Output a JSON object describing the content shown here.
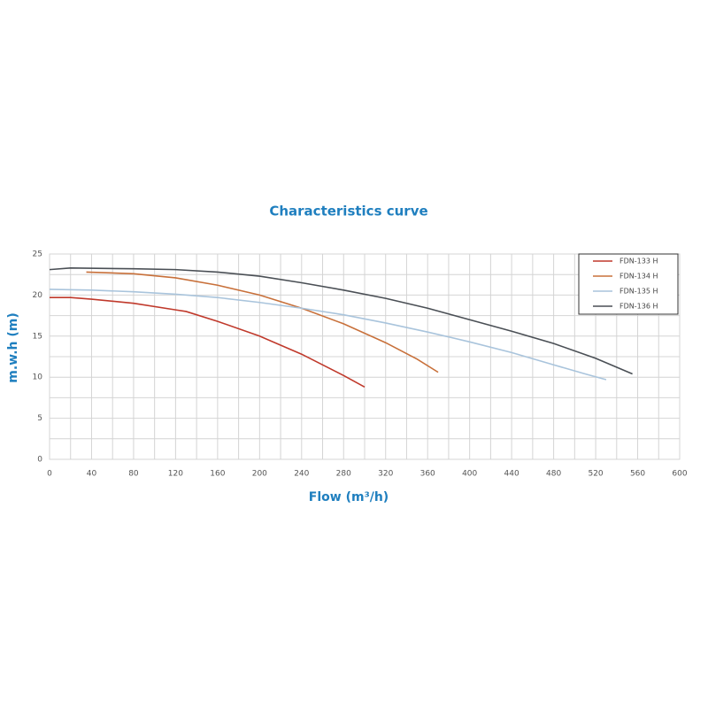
{
  "chart_data": {
    "type": "line",
    "title": "Characteristics curve",
    "x_label": "Flow (m³/h)",
    "y_label": "m.w.h (m)",
    "xlim": [
      0,
      600
    ],
    "xticks": [
      0,
      40,
      80,
      120,
      160,
      200,
      240,
      280,
      320,
      360,
      400,
      440,
      480,
      520,
      560,
      600
    ],
    "ylim": [
      0,
      25
    ],
    "yticks": [
      0,
      5,
      10,
      15,
      20,
      25
    ],
    "grid": true,
    "minor_grid": true,
    "legend": "upper right",
    "series": [
      {
        "name": "FDN-133 H",
        "color": "#c0392b",
        "x": [
          0,
          20,
          40,
          80,
          120,
          130,
          160,
          200,
          240,
          280,
          300
        ],
        "values": [
          19.7,
          19.7,
          19.5,
          19.0,
          18.2,
          18.0,
          16.8,
          15.0,
          12.8,
          10.2,
          8.8
        ]
      },
      {
        "name": "FDN-134 H",
        "color": "#c8703a",
        "x": [
          35,
          80,
          120,
          160,
          200,
          240,
          280,
          320,
          350,
          370
        ],
        "values": [
          22.8,
          22.6,
          22.1,
          21.2,
          20.0,
          18.4,
          16.5,
          14.2,
          12.2,
          10.6
        ]
      },
      {
        "name": "FDN-135 H",
        "color": "#a9c4dc",
        "x": [
          0,
          40,
          80,
          120,
          160,
          200,
          240,
          280,
          320,
          360,
          400,
          440,
          480,
          510,
          530
        ],
        "values": [
          20.7,
          20.6,
          20.4,
          20.1,
          19.7,
          19.1,
          18.4,
          17.6,
          16.6,
          15.5,
          14.3,
          13.0,
          11.5,
          10.4,
          9.7
        ]
      },
      {
        "name": "FDN-136 H",
        "color": "#4a4f55",
        "x": [
          0,
          20,
          80,
          120,
          160,
          200,
          240,
          280,
          320,
          360,
          400,
          440,
          480,
          520,
          555
        ],
        "values": [
          23.1,
          23.3,
          23.2,
          23.1,
          22.8,
          22.3,
          21.5,
          20.6,
          19.6,
          18.4,
          17.0,
          15.6,
          14.1,
          12.3,
          10.4
        ]
      }
    ]
  }
}
